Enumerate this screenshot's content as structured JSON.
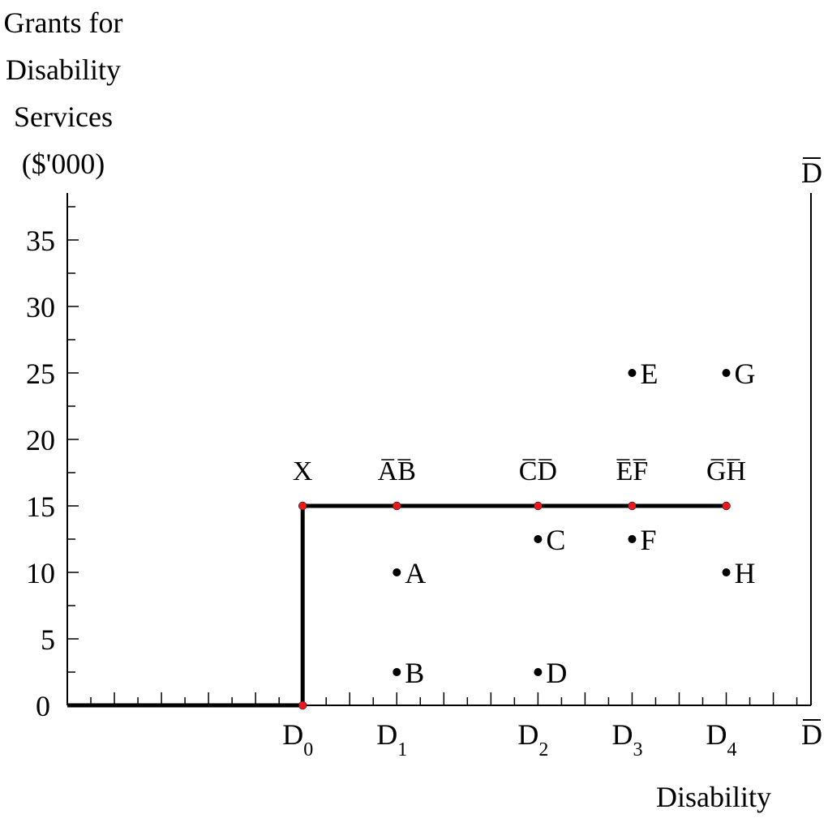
{
  "chart_data": {
    "type": "line",
    "ylabel": [
      "Grants for",
      "Disability",
      "Services",
      "($'000)"
    ],
    "xlabel": "Disability",
    "ylim": [
      0,
      38
    ],
    "yticks": [
      0,
      5,
      10,
      15,
      20,
      25,
      30,
      35
    ],
    "ytick_labels": [
      "0",
      "5",
      "10",
      "15",
      "20",
      "25",
      "30",
      "35"
    ],
    "x_categories": [
      {
        "key": "D0",
        "base": "D",
        "sub": "0"
      },
      {
        "key": "D1",
        "base": "D",
        "sub": "1"
      },
      {
        "key": "D2",
        "base": "D",
        "sub": "2"
      },
      {
        "key": "D3",
        "base": "D",
        "sub": "3"
      },
      {
        "key": "D4",
        "base": "D",
        "sub": "4"
      }
    ],
    "x_max_label": "D",
    "right_axis_label": "D",
    "x_positions": {
      "start": 0,
      "D0": 5,
      "D1": 7,
      "D2": 10,
      "D3": 12,
      "D4": 14,
      "max": 15.8
    },
    "step_function": [
      {
        "x": 0,
        "y": 0
      },
      {
        "x": 5,
        "y": 0
      },
      {
        "x": 5,
        "y": 15
      },
      {
        "x": 14,
        "y": 15
      }
    ],
    "step_markers": [
      {
        "x": 5,
        "y": 0,
        "label": ""
      },
      {
        "x": 5,
        "y": 15,
        "label": "X"
      },
      {
        "x": 7,
        "y": 15,
        "label": "AB",
        "overline": true
      },
      {
        "x": 10,
        "y": 15,
        "label": "CD",
        "overline": true
      },
      {
        "x": 12,
        "y": 15,
        "label": "EF",
        "overline": true
      },
      {
        "x": 14,
        "y": 15,
        "label": "GH",
        "overline": true
      }
    ],
    "points": [
      {
        "label": "A",
        "x": 7,
        "y": 10
      },
      {
        "label": "B",
        "x": 7,
        "y": 2.5
      },
      {
        "label": "C",
        "x": 10,
        "y": 12.5
      },
      {
        "label": "D",
        "x": 10,
        "y": 2.5
      },
      {
        "label": "E",
        "x": 12,
        "y": 25
      },
      {
        "label": "F",
        "x": 12,
        "y": 12.5
      },
      {
        "label": "G",
        "x": 14,
        "y": 25
      },
      {
        "label": "H",
        "x": 14,
        "y": 10
      }
    ],
    "colors": {
      "line": "#000000",
      "marker": "#e8191f",
      "point": "#000000"
    }
  }
}
